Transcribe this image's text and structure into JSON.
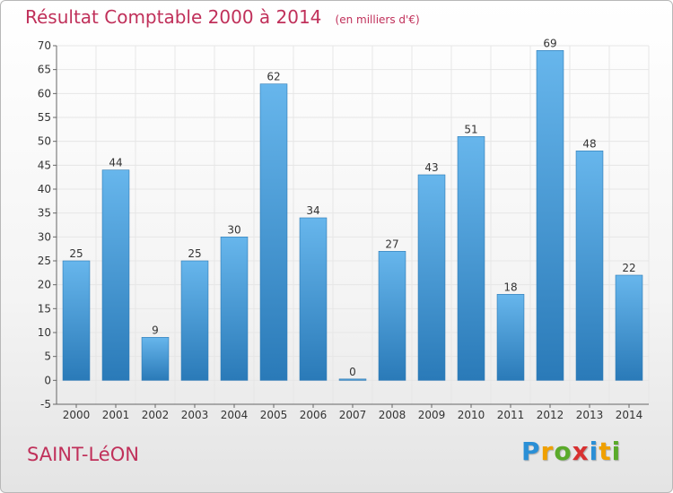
{
  "title": {
    "main": "Résultat Comptable 2000 à 2014",
    "unit": "(en milliers d'€)"
  },
  "town": "SAINT-LéON",
  "logo": {
    "letters": [
      {
        "char": "P",
        "color": "#2a8fd6"
      },
      {
        "char": "r",
        "color": "#f0a000"
      },
      {
        "char": "o",
        "color": "#5aaa2a"
      },
      {
        "char": "x",
        "color": "#d83030"
      },
      {
        "char": "i",
        "color": "#2a8fd6"
      },
      {
        "char": "t",
        "color": "#f0a000"
      },
      {
        "char": "i",
        "color": "#5aaa2a"
      }
    ]
  },
  "colors": {
    "bar_light": "#67b6ec",
    "bar_dark": "#2a7ab8",
    "grid": "#e6e6e6"
  },
  "chart_data": {
    "type": "bar",
    "title": "Résultat Comptable 2000 à 2014",
    "subtitle": "(en milliers d'€)",
    "categories": [
      "2000",
      "2001",
      "2002",
      "2003",
      "2004",
      "2005",
      "2006",
      "2007",
      "2008",
      "2009",
      "2010",
      "2011",
      "2012",
      "2013",
      "2014"
    ],
    "values": [
      25,
      44,
      9,
      25,
      30,
      62,
      34,
      0,
      27,
      43,
      51,
      18,
      69,
      48,
      22
    ],
    "data_labels": [
      "25",
      "44",
      "9",
      "25",
      "30",
      "62",
      "34",
      "0",
      "27",
      "43",
      "51",
      "18",
      "69",
      "48",
      "22"
    ],
    "ylim": [
      -5,
      70
    ],
    "yticks": [
      -5,
      0,
      5,
      10,
      15,
      20,
      25,
      30,
      35,
      40,
      45,
      50,
      55,
      60,
      65,
      70
    ],
    "ytick_labels": [
      "-5",
      "0",
      "5",
      "10",
      "15",
      "20",
      "25",
      "30",
      "35",
      "40",
      "45",
      "50",
      "55",
      "60",
      "65",
      "70"
    ],
    "grid": true,
    "xlabel": "",
    "ylabel": ""
  }
}
